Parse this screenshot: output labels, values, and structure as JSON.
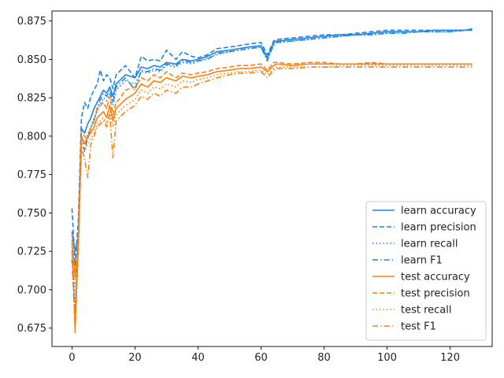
{
  "chart_data": {
    "type": "line",
    "title": "",
    "xlabel": "",
    "ylabel": "",
    "xlim": [
      -6.35,
      133.35
    ],
    "ylim": [
      0.663,
      0.8815
    ],
    "xticks": [
      0,
      20,
      40,
      60,
      80,
      100,
      120
    ],
    "yticks": [
      0.675,
      0.7,
      0.725,
      0.75,
      0.775,
      0.8,
      0.825,
      0.85,
      0.875
    ],
    "ytick_labels": [
      "0.675",
      "0.700",
      "0.725",
      "0.750",
      "0.775",
      "0.800",
      "0.825",
      "0.850",
      "0.875"
    ],
    "grid": false,
    "legend_position": "lower-right",
    "series": [
      {
        "name": "learn accuracy",
        "color": "#1f84e6",
        "dash": "solid",
        "x": [
          0,
          1,
          2,
          3,
          4,
          5,
          6,
          7,
          8,
          9,
          10,
          11,
          12,
          13,
          14,
          15,
          17,
          20,
          22,
          24,
          26,
          28,
          30,
          33,
          35,
          38,
          40,
          43,
          46,
          50,
          53,
          56,
          60,
          62,
          64,
          65,
          70,
          75,
          80,
          85,
          90,
          95,
          100,
          105,
          110,
          115,
          120,
          125,
          127
        ],
        "y": [
          0.738,
          0.725,
          0.735,
          0.805,
          0.802,
          0.808,
          0.812,
          0.818,
          0.822,
          0.826,
          0.83,
          0.828,
          0.832,
          0.826,
          0.834,
          0.836,
          0.84,
          0.838,
          0.845,
          0.844,
          0.846,
          0.845,
          0.848,
          0.847,
          0.85,
          0.849,
          0.85,
          0.852,
          0.855,
          0.856,
          0.857,
          0.858,
          0.859,
          0.851,
          0.861,
          0.862,
          0.863,
          0.864,
          0.865,
          0.866,
          0.866,
          0.867,
          0.868,
          0.868,
          0.868,
          0.869,
          0.869,
          0.869,
          0.87
        ]
      },
      {
        "name": "learn precision",
        "color": "#1f84e6",
        "dash": "dashed",
        "x": [
          0,
          1,
          2,
          3,
          4,
          5,
          6,
          7,
          8,
          9,
          10,
          11,
          12,
          13,
          14,
          15,
          17,
          20,
          22,
          24,
          26,
          28,
          30,
          33,
          35,
          38,
          40,
          43,
          46,
          50,
          53,
          56,
          60,
          62,
          64,
          65,
          70,
          75,
          80,
          85,
          90,
          95,
          100,
          105,
          110,
          115,
          120,
          125,
          127
        ],
        "y": [
          0.753,
          0.716,
          0.745,
          0.812,
          0.822,
          0.818,
          0.826,
          0.83,
          0.834,
          0.843,
          0.836,
          0.84,
          0.838,
          0.831,
          0.84,
          0.842,
          0.846,
          0.838,
          0.852,
          0.849,
          0.85,
          0.849,
          0.856,
          0.85,
          0.855,
          0.852,
          0.851,
          0.853,
          0.857,
          0.858,
          0.859,
          0.86,
          0.861,
          0.853,
          0.862,
          0.863,
          0.864,
          0.865,
          0.866,
          0.866,
          0.867,
          0.868,
          0.869,
          0.869,
          0.869,
          0.869,
          0.869,
          0.869,
          0.869
        ]
      },
      {
        "name": "learn recall",
        "color": "#1f84e6",
        "dash": "dotted",
        "x": [
          0,
          1,
          2,
          3,
          4,
          5,
          6,
          7,
          8,
          9,
          10,
          11,
          12,
          13,
          14,
          15,
          17,
          20,
          22,
          24,
          26,
          28,
          30,
          33,
          35,
          38,
          40,
          43,
          46,
          50,
          53,
          56,
          60,
          62,
          64,
          65,
          70,
          75,
          80,
          85,
          90,
          95,
          100,
          105,
          110,
          115,
          120,
          125,
          127
        ],
        "y": [
          0.73,
          0.69,
          0.728,
          0.798,
          0.795,
          0.801,
          0.806,
          0.812,
          0.816,
          0.821,
          0.825,
          0.823,
          0.828,
          0.82,
          0.83,
          0.832,
          0.836,
          0.834,
          0.842,
          0.841,
          0.843,
          0.842,
          0.846,
          0.845,
          0.848,
          0.847,
          0.849,
          0.851,
          0.853,
          0.855,
          0.856,
          0.857,
          0.858,
          0.85,
          0.859,
          0.861,
          0.862,
          0.863,
          0.864,
          0.865,
          0.866,
          0.866,
          0.867,
          0.868,
          0.868,
          0.868,
          0.868,
          0.869,
          0.869
        ]
      },
      {
        "name": "learn F1",
        "color": "#1f84e6",
        "dash": "dashdot",
        "x": [
          0,
          1,
          2,
          3,
          4,
          5,
          6,
          7,
          8,
          9,
          10,
          11,
          12,
          13,
          14,
          15,
          17,
          20,
          22,
          24,
          26,
          28,
          30,
          33,
          35,
          38,
          40,
          43,
          46,
          50,
          53,
          56,
          60,
          62,
          64,
          65,
          70,
          75,
          80,
          85,
          90,
          95,
          100,
          105,
          110,
          115,
          120,
          125,
          127
        ],
        "y": [
          0.72,
          0.678,
          0.73,
          0.8,
          0.79,
          0.8,
          0.805,
          0.81,
          0.818,
          0.824,
          0.828,
          0.826,
          0.83,
          0.822,
          0.832,
          0.834,
          0.838,
          0.83,
          0.843,
          0.842,
          0.844,
          0.843,
          0.847,
          0.846,
          0.849,
          0.848,
          0.849,
          0.85,
          0.854,
          0.855,
          0.856,
          0.857,
          0.858,
          0.849,
          0.86,
          0.861,
          0.862,
          0.863,
          0.864,
          0.865,
          0.866,
          0.866,
          0.867,
          0.867,
          0.868,
          0.868,
          0.868,
          0.869,
          0.869
        ]
      },
      {
        "name": "test accuracy",
        "color": "#ff7f0e",
        "dash": "solid",
        "x": [
          0,
          1,
          2,
          3,
          4,
          5,
          6,
          7,
          8,
          9,
          10,
          11,
          12,
          13,
          14,
          15,
          17,
          20,
          22,
          24,
          26,
          28,
          30,
          33,
          35,
          38,
          40,
          43,
          46,
          50,
          53,
          56,
          60,
          62,
          64,
          65,
          70,
          75,
          80,
          85,
          90,
          95,
          100,
          105,
          110,
          115,
          120,
          125,
          127
        ],
        "y": [
          0.733,
          0.708,
          0.732,
          0.8,
          0.795,
          0.8,
          0.802,
          0.806,
          0.812,
          0.814,
          0.816,
          0.812,
          0.82,
          0.81,
          0.818,
          0.82,
          0.824,
          0.828,
          0.834,
          0.832,
          0.836,
          0.835,
          0.838,
          0.836,
          0.839,
          0.838,
          0.839,
          0.84,
          0.842,
          0.843,
          0.844,
          0.844,
          0.845,
          0.842,
          0.846,
          0.847,
          0.846,
          0.847,
          0.847,
          0.847,
          0.847,
          0.847,
          0.847,
          0.847,
          0.847,
          0.847,
          0.847,
          0.847,
          0.847
        ]
      },
      {
        "name": "test precision",
        "color": "#ff7f0e",
        "dash": "dashed",
        "x": [
          0,
          1,
          2,
          3,
          4,
          5,
          6,
          7,
          8,
          9,
          10,
          11,
          12,
          13,
          14,
          15,
          17,
          20,
          22,
          24,
          26,
          28,
          30,
          33,
          35,
          38,
          40,
          43,
          46,
          50,
          53,
          56,
          60,
          62,
          64,
          65,
          70,
          75,
          80,
          85,
          90,
          95,
          100,
          105,
          110,
          115,
          120,
          125,
          127
        ],
        "y": [
          0.737,
          0.672,
          0.735,
          0.803,
          0.8,
          0.798,
          0.806,
          0.81,
          0.818,
          0.82,
          0.822,
          0.818,
          0.826,
          0.814,
          0.822,
          0.824,
          0.83,
          0.832,
          0.838,
          0.836,
          0.84,
          0.838,
          0.842,
          0.838,
          0.841,
          0.84,
          0.841,
          0.842,
          0.844,
          0.845,
          0.846,
          0.846,
          0.847,
          0.843,
          0.848,
          0.848,
          0.847,
          0.848,
          0.848,
          0.847,
          0.847,
          0.848,
          0.847,
          0.847,
          0.847,
          0.847,
          0.847,
          0.847,
          0.847
        ]
      },
      {
        "name": "test recall",
        "color": "#ff7f0e",
        "dash": "dotted",
        "x": [
          0,
          1,
          2,
          3,
          4,
          5,
          6,
          7,
          8,
          9,
          10,
          11,
          12,
          13,
          14,
          15,
          17,
          20,
          22,
          24,
          26,
          28,
          30,
          33,
          35,
          38,
          40,
          43,
          46,
          50,
          53,
          56,
          60,
          62,
          64,
          65,
          70,
          75,
          80,
          85,
          90,
          95,
          100,
          105,
          110,
          115,
          120,
          125,
          127
        ],
        "y": [
          0.728,
          0.7,
          0.728,
          0.797,
          0.79,
          0.795,
          0.798,
          0.802,
          0.808,
          0.81,
          0.812,
          0.808,
          0.816,
          0.806,
          0.814,
          0.816,
          0.82,
          0.824,
          0.83,
          0.828,
          0.832,
          0.831,
          0.834,
          0.832,
          0.836,
          0.835,
          0.837,
          0.838,
          0.84,
          0.841,
          0.842,
          0.842,
          0.843,
          0.84,
          0.844,
          0.845,
          0.845,
          0.845,
          0.845,
          0.846,
          0.846,
          0.846,
          0.846,
          0.846,
          0.846,
          0.846,
          0.846,
          0.846,
          0.846
        ]
      },
      {
        "name": "test F1",
        "color": "#ff7f0e",
        "dash": "dashdot",
        "x": [
          0,
          1,
          2,
          3,
          4,
          5,
          6,
          7,
          8,
          9,
          10,
          11,
          12,
          13,
          14,
          15,
          17,
          20,
          22,
          24,
          26,
          28,
          30,
          33,
          35,
          38,
          40,
          43,
          46,
          50,
          53,
          56,
          60,
          62,
          64,
          65,
          70,
          75,
          80,
          85,
          90,
          95,
          100,
          105,
          110,
          115,
          120,
          125,
          127
        ],
        "y": [
          0.725,
          0.675,
          0.725,
          0.793,
          0.785,
          0.773,
          0.795,
          0.8,
          0.806,
          0.808,
          0.81,
          0.806,
          0.814,
          0.786,
          0.81,
          0.812,
          0.816,
          0.82,
          0.826,
          0.824,
          0.828,
          0.826,
          0.83,
          0.828,
          0.832,
          0.832,
          0.834,
          0.836,
          0.838,
          0.84,
          0.841,
          0.841,
          0.842,
          0.838,
          0.843,
          0.844,
          0.844,
          0.845,
          0.845,
          0.845,
          0.845,
          0.845,
          0.845,
          0.845,
          0.845,
          0.845,
          0.845,
          0.845,
          0.845
        ]
      }
    ]
  }
}
